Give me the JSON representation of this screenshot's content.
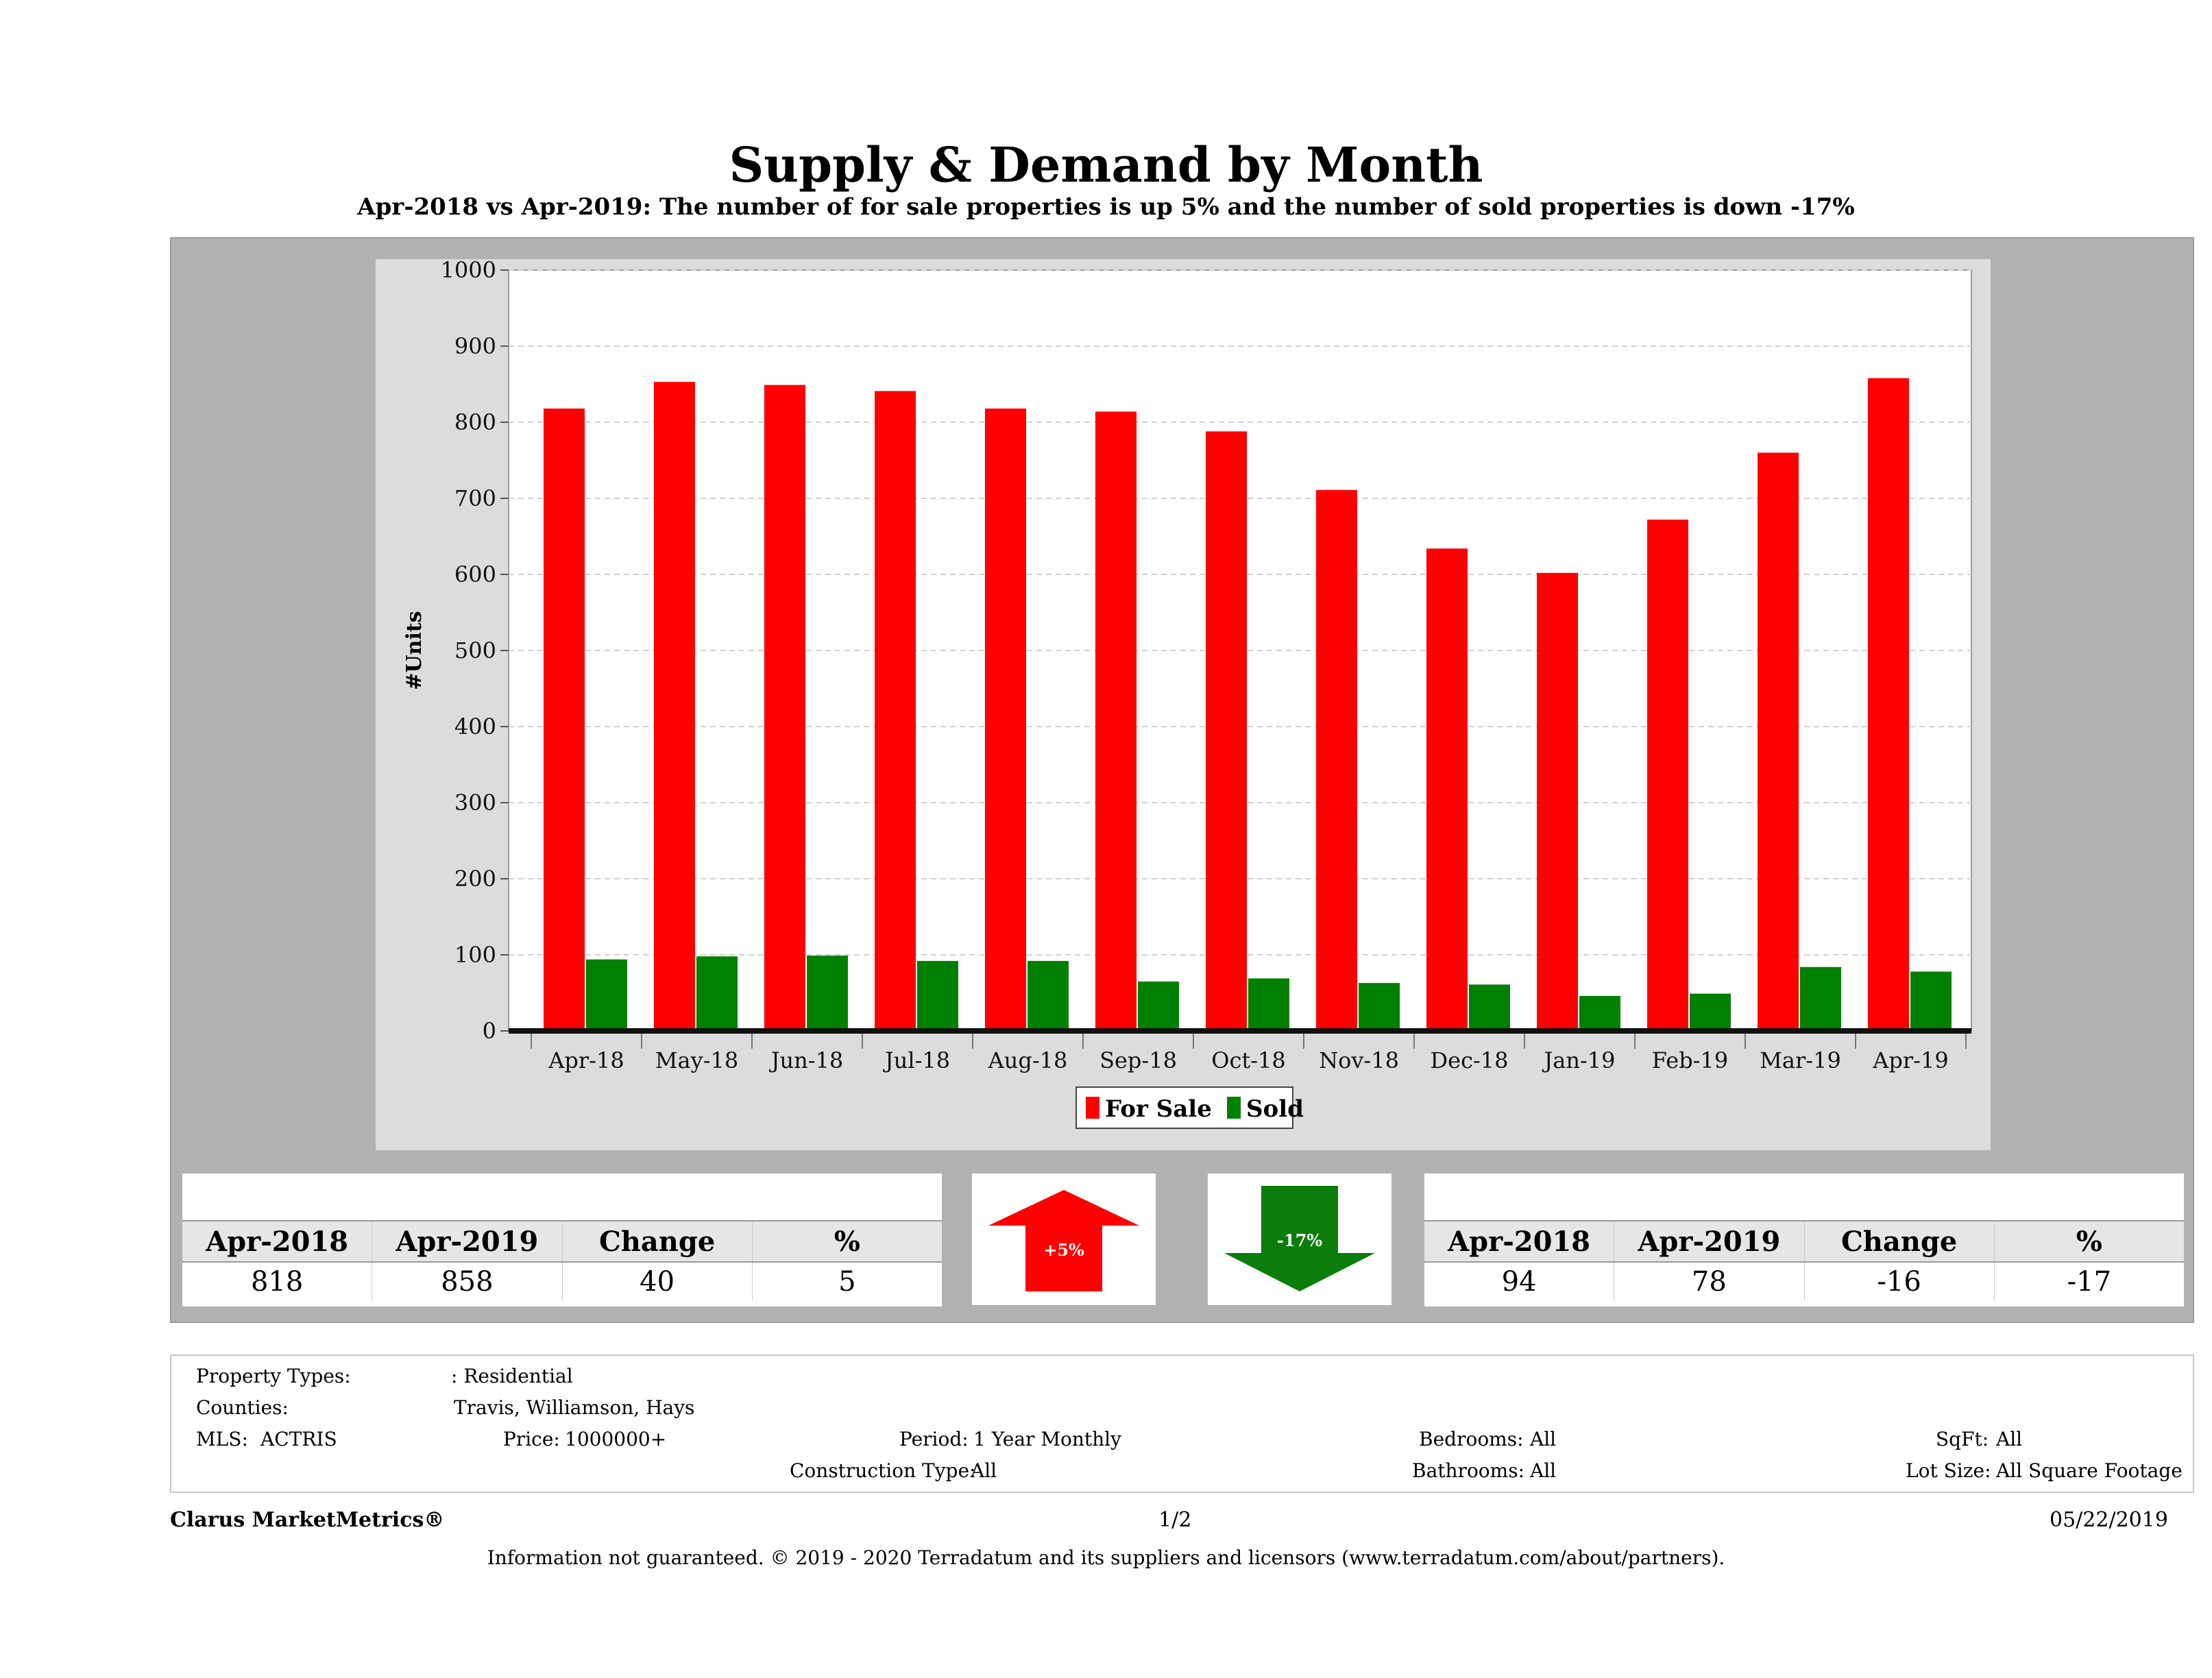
{
  "title": "Supply & Demand by Month",
  "subtitle": "Apr-2018 vs Apr-2019: The number of for sale properties is up 5% and the number of sold properties is down -17%",
  "chart_data": {
    "type": "bar",
    "categories": [
      "Apr-18",
      "May-18",
      "Jun-18",
      "Jul-18",
      "Aug-18",
      "Sep-18",
      "Oct-18",
      "Nov-18",
      "Dec-18",
      "Jan-19",
      "Feb-19",
      "Mar-19",
      "Apr-19"
    ],
    "series": [
      {
        "name": "For Sale",
        "color": "#ff0000",
        "values": [
          818,
          853,
          849,
          841,
          818,
          814,
          788,
          711,
          634,
          602,
          672,
          760,
          858
        ]
      },
      {
        "name": "Sold",
        "color": "#008000",
        "values": [
          94,
          98,
          99,
          92,
          92,
          65,
          69,
          63,
          61,
          46,
          49,
          84,
          78
        ]
      }
    ],
    "ylabel": "#Units",
    "xlabel": "",
    "ylim": [
      0,
      1000
    ],
    "yticks": [
      0,
      100,
      200,
      300,
      400,
      500,
      600,
      700,
      800,
      900,
      1000
    ],
    "grid": true,
    "legend_position": "bottom-center"
  },
  "for_sale_table": {
    "headers": [
      "Apr-2018",
      "Apr-2019",
      "Change",
      "%"
    ],
    "values": [
      "818",
      "858",
      "40",
      "5"
    ]
  },
  "sold_table": {
    "headers": [
      "Apr-2018",
      "Apr-2019",
      "Change",
      "%"
    ],
    "values": [
      "94",
      "78",
      "-16",
      "-17"
    ]
  },
  "up_arrow": {
    "label": "+5%",
    "color": "#ff0000"
  },
  "down_arrow": {
    "label": "-17%",
    "color": "#008000"
  },
  "criteria": {
    "property_types_label": "Property Types:",
    "property_types_value": ": Residential",
    "counties_label": "Counties:",
    "counties_value": "Travis, Williamson, Hays",
    "mls_label": "MLS:",
    "mls_value": "ACTRIS",
    "price_label": "Price:",
    "price_value": "1000000+",
    "period_label": "Period:",
    "period_value": "1 Year Monthly",
    "construction_label": "Construction Type:",
    "construction_value": "All",
    "bedrooms_label": "Bedrooms:",
    "bedrooms_value": "All",
    "bathrooms_label": "Bathrooms:",
    "bathrooms_value": "All",
    "sqft_label": "SqFt:",
    "sqft_value": "All",
    "lotsize_label": "Lot Size:",
    "lotsize_value": "All Square Footage"
  },
  "footer": {
    "brand": "Clarus MarketMetrics®",
    "page": "1/2",
    "date": "05/22/2019",
    "disclaimer": "Information not guaranteed. © 2019 - 2020 Terradatum and its suppliers and licensors (www.terradatum.com/about/partners)."
  }
}
